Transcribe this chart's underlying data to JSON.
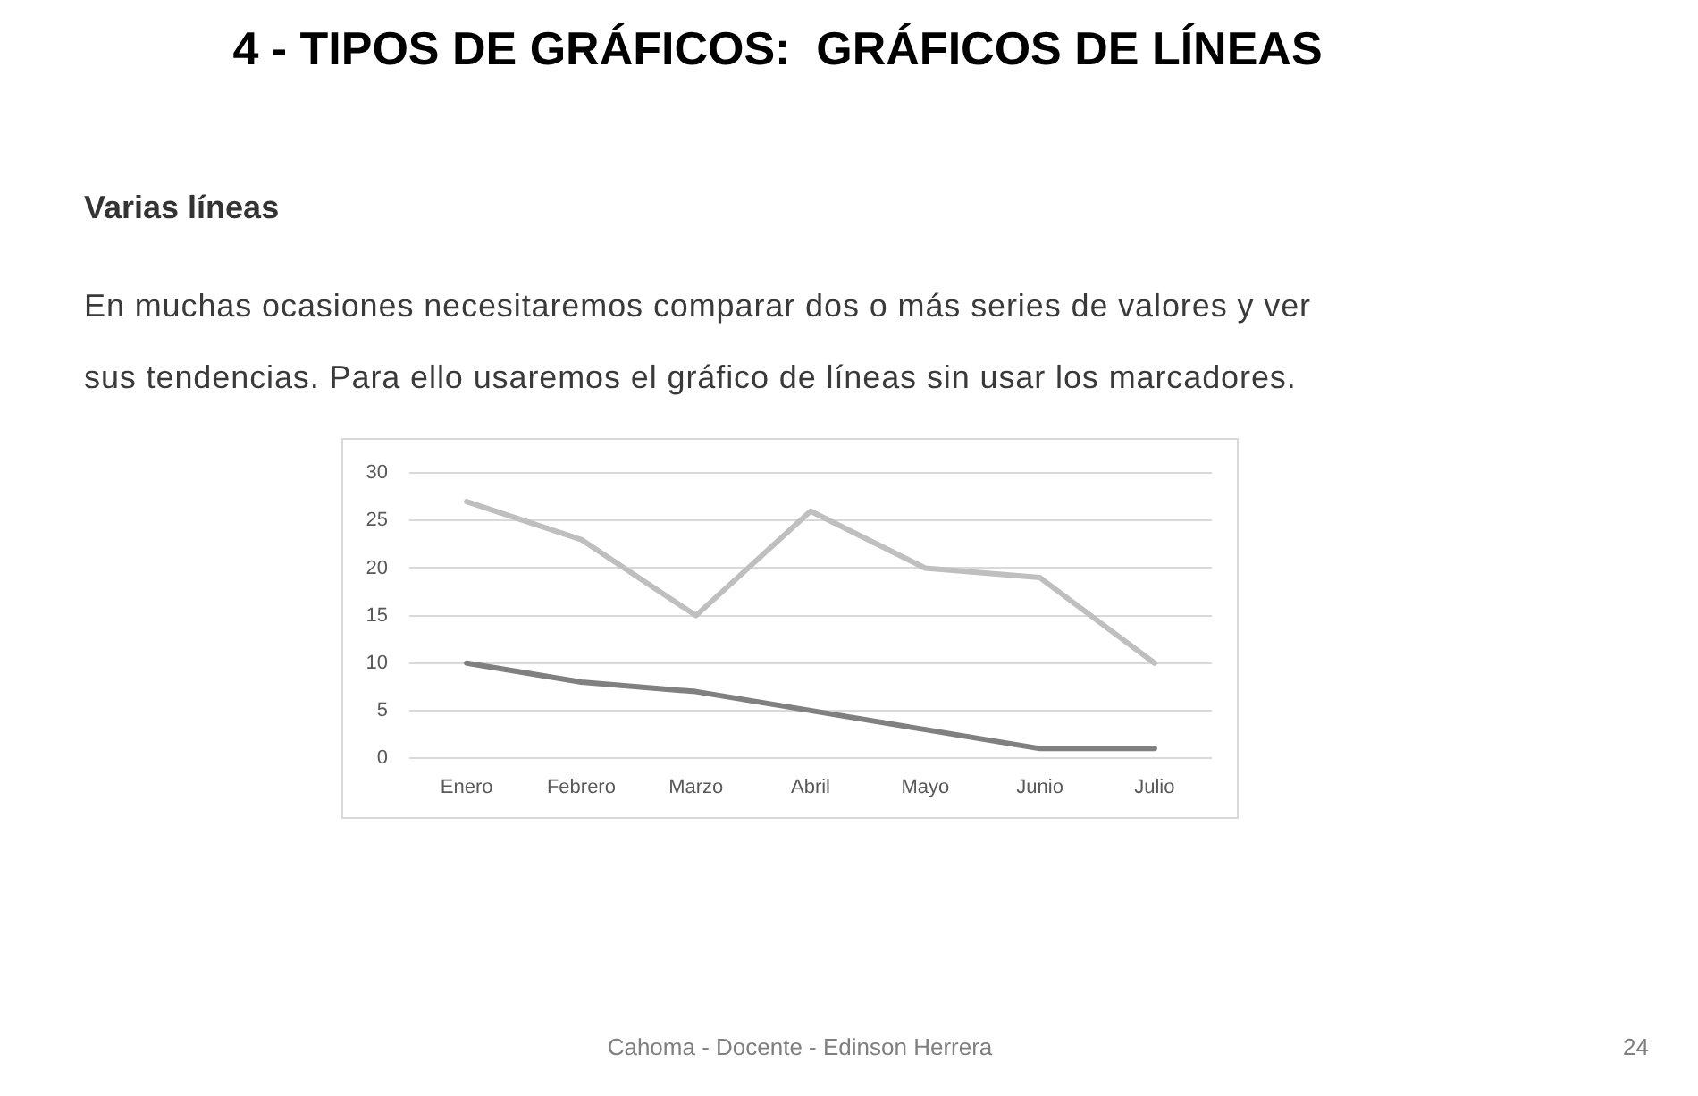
{
  "chart_data": {
    "type": "line",
    "title": "4 - TIPOS DE GRÁFICOS:  GRÁFICOS DE LÍNEAS",
    "subtitle": "Varias líneas",
    "annotations": [
      "En muchas ocasiones necesitaremos comparar dos o más series de valores y ver sus tendencias. Para ello usaremos el gráfico de líneas sin usar los marcadores.",
      "Cahoma - Docente - Edinson Herrera",
      "24"
    ],
    "categories": [
      "Enero",
      "Febrero",
      "Marzo",
      "Abril",
      "Mayo",
      "Junio",
      "Julio"
    ],
    "series": [
      {
        "color": "#bfbfbf",
        "values": [
          27,
          23,
          15,
          26,
          20,
          19,
          10
        ]
      },
      {
        "color": "#808080",
        "values": [
          10,
          8,
          7,
          5,
          3,
          1,
          1
        ]
      }
    ],
    "ylim": [
      0,
      30
    ],
    "yticks": [
      0,
      5,
      10,
      15,
      20,
      25,
      30
    ],
    "grid": "y"
  }
}
